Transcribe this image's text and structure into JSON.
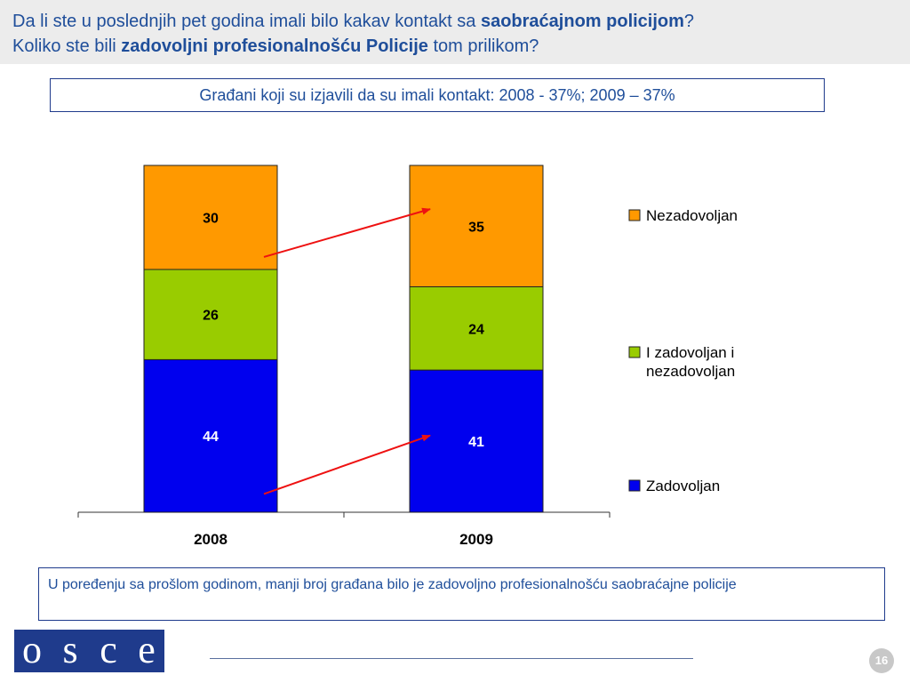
{
  "header": {
    "line1_a": "Da li ste u poslednjih pet godina imali bilo kakav kontakt sa ",
    "line1_b": "saobraćajnom policijom",
    "line1_c": "?",
    "line2_a": "Koliko ste bili ",
    "line2_b": "zadovoljni profesionalnošću Policije",
    "line2_c": " tom prilikom?"
  },
  "subtitle": "Građani koji su izjavili da su imali kontakt: 2008 - 37%; 2009 – 37%",
  "chart_data": {
    "type": "bar",
    "stacked": true,
    "categories": [
      "2008",
      "2009"
    ],
    "series": [
      {
        "name": "Zadovoljan",
        "values": [
          44,
          41
        ],
        "color": "#0000ee"
      },
      {
        "name": "I zadovoljan i nezadovoljan",
        "values": [
          26,
          24
        ],
        "color": "#99cc00"
      },
      {
        "name": "Nezadovoljan",
        "values": [
          30,
          35
        ],
        "color": "#ff9900"
      }
    ],
    "legend_order": [
      "Nezadovoljan",
      "I zadovoljan i nezadovoljan",
      "Zadovoljan"
    ],
    "ylim": [
      0,
      100
    ],
    "legend_position": "right",
    "arrows": [
      {
        "from": "2008 Nezadovoljan",
        "to": "2009 Nezadovoljan",
        "color": "#ee1111"
      },
      {
        "from": "2008 Zadovoljan",
        "to": "2009 Zadovoljan",
        "color": "#ee1111"
      }
    ]
  },
  "note": "U poređenju sa prošlom godinom, manji broj građana bilo je zadovoljno profesionalnošću saobraćajne policije",
  "logo": [
    "o",
    "s",
    "c",
    "e"
  ],
  "page_number": "16"
}
